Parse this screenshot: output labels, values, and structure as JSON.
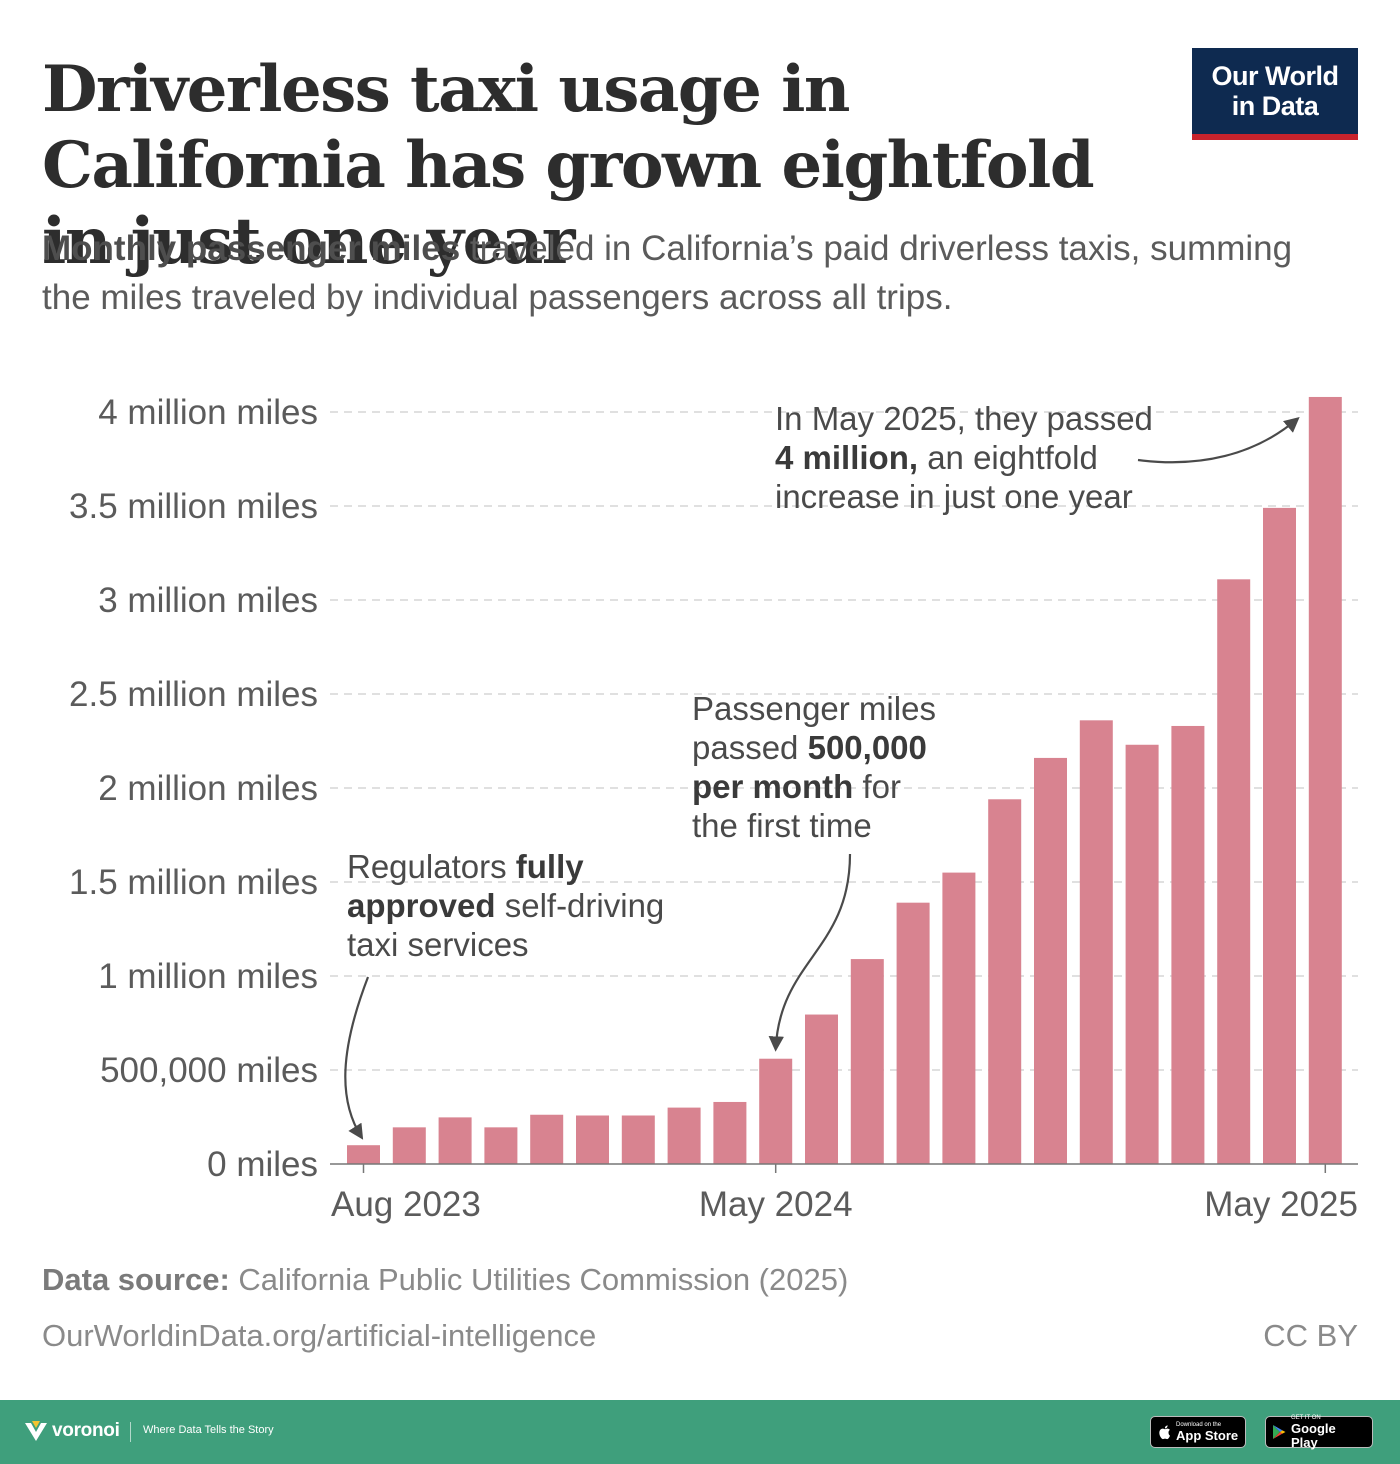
{
  "header": {
    "title": "Driverless taxi usage in California has grown eightfold in just one year",
    "subtitle_bold": "Monthly passenger miles",
    "subtitle_rest": " traveled in California’s paid driverless taxis, summing the miles traveled by individual passengers across all trips.",
    "logo_line1": "Our World",
    "logo_line2": "in Data"
  },
  "chart_data": {
    "type": "bar",
    "title": "",
    "xlabel": "",
    "ylabel": "",
    "ylim": [
      0,
      4000000
    ],
    "yticks": [
      0,
      500000,
      1000000,
      1500000,
      2000000,
      2500000,
      3000000,
      3500000,
      4000000
    ],
    "ytick_labels": [
      "0 miles",
      "500,000 miles",
      "1 million miles",
      "1.5 million miles",
      "2 million miles",
      "2.5 million miles",
      "3 million miles",
      "3.5 million miles",
      "4 million miles"
    ],
    "categories": [
      "Aug 2023",
      "Sep 2023",
      "Oct 2023",
      "Nov 2023",
      "Dec 2023",
      "Jan 2024",
      "Feb 2024",
      "Mar 2024",
      "Apr 2024",
      "May 2024",
      "Jun 2024",
      "Jul 2024",
      "Aug 2024",
      "Sep 2024",
      "Oct 2024",
      "Nov 2024",
      "Dec 2024",
      "Jan 2025",
      "Feb 2025",
      "Mar 2025",
      "Apr 2025",
      "May 2025"
    ],
    "values": [
      100000,
      195000,
      248000,
      195000,
      262000,
      258000,
      258000,
      300000,
      330000,
      560000,
      795000,
      1090000,
      1390000,
      1550000,
      1940000,
      2160000,
      2360000,
      2230000,
      2330000,
      3110000,
      3490000,
      4080000
    ],
    "xtick_labels": [
      {
        "index": 0,
        "label": "Aug 2023"
      },
      {
        "index": 9,
        "label": "May 2024"
      },
      {
        "index": 21,
        "label": "May 2025"
      }
    ],
    "bar_color": "#d88390",
    "grid": "horizontal-dashed",
    "annotations": [
      {
        "id": "approved",
        "target_index": 0,
        "segments": [
          {
            "text": "Regulators ",
            "bold": false
          },
          {
            "text": "fully",
            "bold": true
          },
          {
            "text": "approved",
            "bold": true
          },
          {
            "text": " self-driving",
            "bold": false
          },
          {
            "text": "taxi services",
            "bold": false
          }
        ]
      },
      {
        "id": "half-million",
        "target_index": 9,
        "segments": [
          {
            "text": "Passenger miles",
            "bold": false
          },
          {
            "text": "passed ",
            "bold": false
          },
          {
            "text": "500,000",
            "bold": true
          },
          {
            "text": "per month",
            "bold": true
          },
          {
            "text": " for",
            "bold": false
          },
          {
            "text": "the first time",
            "bold": false
          }
        ]
      },
      {
        "id": "four-million",
        "target_index": 21,
        "segments": [
          {
            "text": "In May 2025, they passed",
            "bold": false
          },
          {
            "text": "4 million,",
            "bold": true
          },
          {
            "text": " an eightfold",
            "bold": false
          },
          {
            "text": "increase in just one year",
            "bold": false
          }
        ]
      }
    ]
  },
  "footer": {
    "source_label": "Data source:",
    "source_text": " California Public Utilities Commission (2025)",
    "url": "OurWorldinData.org/artificial-intelligence",
    "license": "CC BY"
  },
  "branding": {
    "voronoi_name": "voronoi",
    "tagline": "Where Data Tells the Story",
    "appstore_small": "Download on the",
    "appstore_big": "App Store",
    "googleplay_small": "GET IT ON",
    "googleplay_big": "Google Play"
  }
}
